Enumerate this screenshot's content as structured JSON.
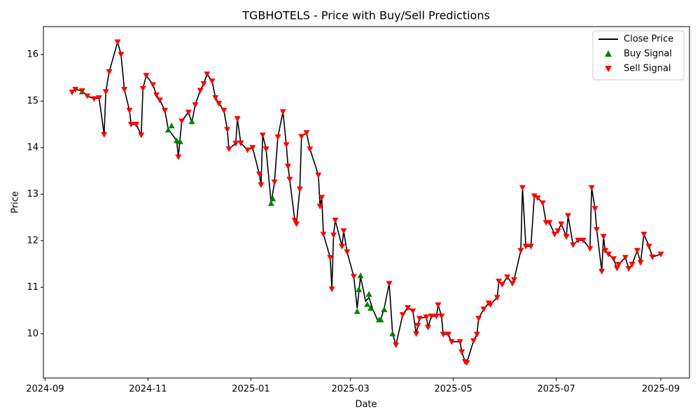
{
  "chart_data": {
    "type": "line",
    "title": "TGBHOTELS - Price with Buy/Sell Predictions",
    "x_label": "Date",
    "y_label": "Price",
    "xlim": [
      "2024-08-31",
      "2025-09-18"
    ],
    "xticks": [
      {
        "value": "2024-09-01",
        "label": "2024-09"
      },
      {
        "value": "2024-11-01",
        "label": "2024-11"
      },
      {
        "value": "2025-01-01",
        "label": "2025-01"
      },
      {
        "value": "2025-03-01",
        "label": "2025-03"
      },
      {
        "value": "2025-05-01",
        "label": "2025-05"
      },
      {
        "value": "2025-07-01",
        "label": "2025-07"
      },
      {
        "value": "2025-09-01",
        "label": "2025-09"
      }
    ],
    "ylim": [
      9.05,
      16.6
    ],
    "yticks": [
      10,
      11,
      12,
      13,
      14,
      15,
      16
    ],
    "legend": "upper right",
    "series": [
      {
        "name": "Close Price",
        "type": "line",
        "color": "#000000",
        "x": [
          "2024-09-17",
          "2024-09-19",
          "2024-09-23",
          "2024-09-26",
          "2024-09-30",
          "2024-10-03",
          "2024-10-06",
          "2024-10-07",
          "2024-10-09",
          "2024-10-14",
          "2024-10-16",
          "2024-10-18",
          "2024-10-21",
          "2024-10-22",
          "2024-10-25",
          "2024-10-28",
          "2024-10-29",
          "2024-10-31",
          "2024-11-04",
          "2024-11-06",
          "2024-11-08",
          "2024-11-11",
          "2024-11-13",
          "2024-11-18",
          "2024-11-19",
          "2024-11-21",
          "2024-11-25",
          "2024-11-27",
          "2024-11-29",
          "2024-12-02",
          "2024-12-04",
          "2024-12-06",
          "2024-12-09",
          "2024-12-11",
          "2024-12-13",
          "2024-12-16",
          "2024-12-18",
          "2024-12-19",
          "2024-12-23",
          "2024-12-24",
          "2024-12-26",
          "2024-12-30",
          "2025-01-02",
          "2025-01-06",
          "2025-01-07",
          "2025-01-08",
          "2025-01-10",
          "2025-01-13",
          "2025-01-15",
          "2025-01-17",
          "2025-01-20",
          "2025-01-22",
          "2025-01-23",
          "2025-01-24",
          "2025-01-27",
          "2025-01-28",
          "2025-01-30",
          "2025-01-31",
          "2025-02-03",
          "2025-02-05",
          "2025-02-10",
          "2025-02-11",
          "2025-02-12",
          "2025-02-13",
          "2025-02-17",
          "2025-02-18",
          "2025-02-19",
          "2025-02-20",
          "2025-02-24",
          "2025-02-25",
          "2025-02-27",
          "2025-03-03",
          "2025-03-05",
          "2025-03-07",
          "2025-03-10",
          "2025-03-12",
          "2025-03-14",
          "2025-03-17",
          "2025-03-19",
          "2025-03-21",
          "2025-03-24",
          "2025-03-26",
          "2025-03-28",
          "2025-04-01",
          "2025-04-04",
          "2025-04-07",
          "2025-04-09",
          "2025-04-10",
          "2025-04-11",
          "2025-04-15",
          "2025-04-16",
          "2025-04-18",
          "2025-04-21",
          "2025-04-22",
          "2025-04-24",
          "2025-04-25",
          "2025-04-28",
          "2025-04-30",
          "2025-05-05",
          "2025-05-06",
          "2025-05-08",
          "2025-05-09",
          "2025-05-13",
          "2025-05-15",
          "2025-05-16",
          "2025-05-19",
          "2025-05-22",
          "2025-05-23",
          "2025-05-27",
          "2025-05-28",
          "2025-05-30",
          "2025-06-02",
          "2025-06-05",
          "2025-06-06",
          "2025-06-10",
          "2025-06-11",
          "2025-06-13",
          "2025-06-16",
          "2025-06-18",
          "2025-06-20",
          "2025-06-23",
          "2025-06-25",
          "2025-06-27",
          "2025-06-30",
          "2025-07-02",
          "2025-07-04",
          "2025-07-07",
          "2025-07-08",
          "2025-07-11",
          "2025-07-14",
          "2025-07-17",
          "2025-07-21",
          "2025-07-22",
          "2025-07-24",
          "2025-07-25",
          "2025-07-28",
          "2025-07-29",
          "2025-07-30",
          "2025-08-01",
          "2025-08-04",
          "2025-08-06",
          "2025-08-07",
          "2025-08-11",
          "2025-08-13",
          "2025-08-15",
          "2025-08-18",
          "2025-08-20",
          "2025-08-22",
          "2025-08-25",
          "2025-08-27",
          "2025-09-01"
        ],
        "values": [
          15.19,
          15.25,
          15.22,
          15.11,
          15.05,
          15.07,
          14.28,
          15.2,
          15.63,
          16.27,
          16.0,
          15.25,
          14.8,
          14.5,
          14.5,
          14.27,
          15.27,
          15.55,
          15.35,
          15.13,
          15.02,
          14.8,
          14.4,
          14.15,
          13.8,
          14.57,
          14.76,
          14.54,
          14.92,
          15.23,
          15.37,
          15.58,
          15.43,
          15.07,
          14.95,
          14.8,
          14.39,
          13.97,
          14.09,
          14.62,
          14.1,
          13.95,
          14.0,
          13.43,
          13.2,
          14.27,
          13.97,
          12.81,
          13.26,
          14.23,
          14.77,
          14.06,
          13.6,
          13.32,
          12.44,
          12.36,
          13.11,
          14.24,
          14.32,
          13.97,
          13.41,
          12.74,
          12.93,
          12.14,
          11.64,
          10.96,
          12.12,
          12.44,
          11.88,
          12.21,
          11.76,
          11.23,
          10.55,
          11.23,
          10.7,
          10.78,
          10.55,
          10.3,
          10.3,
          10.55,
          11.08,
          10.0,
          9.76,
          10.41,
          10.56,
          10.49,
          10.0,
          10.18,
          10.33,
          10.36,
          10.14,
          10.38,
          10.38,
          10.62,
          10.38,
          9.99,
          9.99,
          9.83,
          9.83,
          9.61,
          9.4,
          9.38,
          9.85,
          9.99,
          10.33,
          10.53,
          10.66,
          10.63,
          10.78,
          11.13,
          11.06,
          11.22,
          11.08,
          11.16,
          11.79,
          13.14,
          11.88,
          11.88,
          12.96,
          12.92,
          12.81,
          12.39,
          12.39,
          12.14,
          12.21,
          12.36,
          12.09,
          12.54,
          11.91,
          12.01,
          12.01,
          11.83,
          13.14,
          12.69,
          12.24,
          11.34,
          12.09,
          11.79,
          11.71,
          11.61,
          11.41,
          11.49,
          11.64,
          11.4,
          11.49,
          11.79,
          11.53,
          12.14,
          11.88,
          11.65,
          11.71
        ]
      },
      {
        "name": "Buy Signal",
        "type": "scatter",
        "marker": "triangle-up",
        "color": "#008000",
        "x": [
          "2024-09-23",
          "2024-11-13",
          "2024-11-15",
          "2024-11-18",
          "2024-11-20",
          "2024-11-27",
          "2025-01-13",
          "2025-01-14",
          "2025-03-05",
          "2025-03-06",
          "2025-03-07",
          "2025-03-11",
          "2025-03-12",
          "2025-03-13",
          "2025-03-18",
          "2025-03-19",
          "2025-03-21",
          "2025-03-26"
        ],
        "values": [
          15.2,
          14.38,
          14.47,
          14.15,
          14.13,
          14.56,
          12.8,
          12.9,
          10.48,
          10.95,
          11.25,
          10.63,
          10.85,
          10.55,
          10.3,
          10.3,
          10.52,
          10.0
        ]
      },
      {
        "name": "Sell Signal",
        "type": "scatter",
        "marker": "triangle-down",
        "color": "#ff0000",
        "x": [
          "2024-09-17",
          "2024-09-19",
          "2024-09-23",
          "2024-09-26",
          "2024-09-30",
          "2024-10-03",
          "2024-10-06",
          "2024-10-07",
          "2024-10-09",
          "2024-10-14",
          "2024-10-16",
          "2024-10-18",
          "2024-10-21",
          "2024-10-22",
          "2024-10-25",
          "2024-10-28",
          "2024-10-29",
          "2024-10-31",
          "2024-11-04",
          "2024-11-06",
          "2024-11-08",
          "2024-11-11",
          "2024-11-19",
          "2024-11-21",
          "2024-11-25",
          "2024-11-29",
          "2024-12-02",
          "2024-12-04",
          "2024-12-06",
          "2024-12-09",
          "2024-12-11",
          "2024-12-13",
          "2024-12-16",
          "2024-12-18",
          "2024-12-19",
          "2024-12-23",
          "2024-12-24",
          "2024-12-26",
          "2024-12-30",
          "2025-01-02",
          "2025-01-06",
          "2025-01-07",
          "2025-01-08",
          "2025-01-10",
          "2025-01-15",
          "2025-01-17",
          "2025-01-20",
          "2025-01-22",
          "2025-01-23",
          "2025-01-24",
          "2025-01-27",
          "2025-01-28",
          "2025-01-30",
          "2025-01-31",
          "2025-02-03",
          "2025-02-05",
          "2025-02-10",
          "2025-02-11",
          "2025-02-12",
          "2025-02-13",
          "2025-02-17",
          "2025-02-18",
          "2025-02-19",
          "2025-02-20",
          "2025-02-24",
          "2025-02-25",
          "2025-02-27",
          "2025-03-03",
          "2025-03-24",
          "2025-03-28",
          "2025-04-01",
          "2025-04-04",
          "2025-04-07",
          "2025-04-09",
          "2025-04-10",
          "2025-04-11",
          "2025-04-15",
          "2025-04-16",
          "2025-04-18",
          "2025-04-21",
          "2025-04-22",
          "2025-04-24",
          "2025-04-25",
          "2025-04-28",
          "2025-04-30",
          "2025-05-05",
          "2025-05-06",
          "2025-05-08",
          "2025-05-09",
          "2025-05-13",
          "2025-05-15",
          "2025-05-16",
          "2025-05-19",
          "2025-05-22",
          "2025-05-23",
          "2025-05-27",
          "2025-05-28",
          "2025-05-30",
          "2025-06-02",
          "2025-06-05",
          "2025-06-06",
          "2025-06-10",
          "2025-06-11",
          "2025-06-13",
          "2025-06-16",
          "2025-06-18",
          "2025-06-20",
          "2025-06-23",
          "2025-06-25",
          "2025-06-27",
          "2025-06-30",
          "2025-07-02",
          "2025-07-04",
          "2025-07-07",
          "2025-07-08",
          "2025-07-11",
          "2025-07-14",
          "2025-07-17",
          "2025-07-21",
          "2025-07-22",
          "2025-07-24",
          "2025-07-25",
          "2025-07-28",
          "2025-07-29",
          "2025-07-30",
          "2025-08-01",
          "2025-08-04",
          "2025-08-06",
          "2025-08-07",
          "2025-08-11",
          "2025-08-13",
          "2025-08-15",
          "2025-08-18",
          "2025-08-20",
          "2025-08-22",
          "2025-08-25",
          "2025-08-27",
          "2025-09-01"
        ],
        "values": [
          15.19,
          15.25,
          15.22,
          15.11,
          15.05,
          15.07,
          14.28,
          15.2,
          15.63,
          16.27,
          16.0,
          15.25,
          14.8,
          14.5,
          14.5,
          14.27,
          15.27,
          15.55,
          15.35,
          15.13,
          15.02,
          14.8,
          13.8,
          14.57,
          14.76,
          14.92,
          15.23,
          15.37,
          15.58,
          15.43,
          15.07,
          14.95,
          14.8,
          14.39,
          13.97,
          14.09,
          14.62,
          14.1,
          13.95,
          14.0,
          13.43,
          13.2,
          14.27,
          13.97,
          13.26,
          14.23,
          14.77,
          14.06,
          13.6,
          13.32,
          12.44,
          12.36,
          13.11,
          14.24,
          14.32,
          13.97,
          13.41,
          12.74,
          12.93,
          12.14,
          11.64,
          10.96,
          12.12,
          12.44,
          11.88,
          12.21,
          11.76,
          11.23,
          11.08,
          9.76,
          10.41,
          10.56,
          10.49,
          10.0,
          10.18,
          10.33,
          10.36,
          10.14,
          10.38,
          10.38,
          10.62,
          10.38,
          9.99,
          9.99,
          9.83,
          9.83,
          9.61,
          9.4,
          9.38,
          9.85,
          9.99,
          10.33,
          10.53,
          10.66,
          10.63,
          10.78,
          11.13,
          11.06,
          11.22,
          11.08,
          11.16,
          11.79,
          13.14,
          11.88,
          11.88,
          12.96,
          12.92,
          12.81,
          12.39,
          12.39,
          12.14,
          12.21,
          12.36,
          12.09,
          12.54,
          11.91,
          12.01,
          12.01,
          11.83,
          13.14,
          12.69,
          12.24,
          11.34,
          12.09,
          11.79,
          11.71,
          11.61,
          11.41,
          11.49,
          11.64,
          11.4,
          11.49,
          11.79,
          11.53,
          12.14,
          11.88,
          11.65,
          11.71
        ]
      }
    ]
  }
}
